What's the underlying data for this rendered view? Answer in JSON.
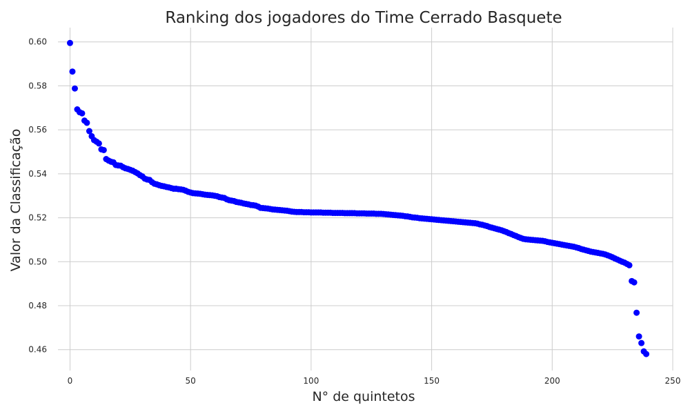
{
  "chart_data": {
    "type": "scatter",
    "title": "Ranking dos jogadores do Time Cerrado Basquete",
    "xlabel": "N° de quintetos",
    "ylabel": "Valor da Classificação",
    "xlim": [
      -5,
      250
    ],
    "ylim": [
      0.4505,
      0.6065
    ],
    "xticks": [
      0,
      50,
      100,
      150,
      200,
      250
    ],
    "xtick_labels": [
      "0",
      "50",
      "100",
      "150",
      "200",
      "250"
    ],
    "yticks": [
      0.46,
      0.48,
      0.5,
      0.52,
      0.54,
      0.56,
      0.58,
      0.6
    ],
    "ytick_labels": [
      "0.46",
      "0.48",
      "0.50",
      "0.52",
      "0.54",
      "0.56",
      "0.58",
      "0.60"
    ],
    "grid": true,
    "marker_color": "#0000ff",
    "series": [
      {
        "x": [
          0,
          1,
          2,
          3,
          4,
          5,
          6,
          7,
          8,
          9,
          10,
          11,
          12,
          13,
          14,
          15,
          16,
          17,
          18,
          19,
          20,
          21,
          22,
          23,
          24,
          25,
          26,
          27,
          28,
          29,
          30,
          31,
          32,
          33,
          34,
          35,
          36,
          37,
          38,
          39,
          40,
          41,
          42,
          43,
          44,
          45,
          46,
          47,
          48,
          49,
          50,
          51,
          52,
          53,
          54,
          55,
          56,
          57,
          58,
          59,
          60,
          61,
          62,
          63,
          64,
          65,
          66,
          67,
          68,
          69,
          70,
          71,
          72,
          73,
          74,
          75,
          76,
          77,
          78,
          79,
          80,
          81,
          82,
          83,
          84,
          85,
          86,
          87,
          88,
          89,
          90,
          91,
          92,
          93,
          94,
          95,
          96,
          97,
          98,
          99,
          100,
          101,
          102,
          103,
          104,
          105,
          106,
          107,
          108,
          109,
          110,
          111,
          112,
          113,
          114,
          115,
          116,
          117,
          118,
          119,
          120,
          121,
          122,
          123,
          124,
          125,
          126,
          127,
          128,
          129,
          130,
          131,
          132,
          133,
          134,
          135,
          136,
          137,
          138,
          139,
          140,
          141,
          142,
          143,
          144,
          145,
          146,
          147,
          148,
          149,
          150,
          151,
          152,
          153,
          154,
          155,
          156,
          157,
          158,
          159,
          160,
          161,
          162,
          163,
          164,
          165,
          166,
          167,
          168,
          169,
          170,
          171,
          172,
          173,
          174,
          175,
          176,
          177,
          178,
          179,
          180,
          181,
          182,
          183,
          184,
          185,
          186,
          187,
          188,
          189,
          190,
          191,
          192,
          193,
          194,
          195,
          196,
          197,
          198,
          199,
          200,
          201,
          202,
          203,
          204,
          205,
          206,
          207,
          208,
          209,
          210,
          211,
          212,
          213,
          214,
          215,
          216,
          217,
          218,
          219,
          220,
          221,
          222,
          223,
          224,
          225,
          226,
          227,
          228,
          229,
          230,
          231,
          232,
          233,
          234,
          235,
          236,
          237,
          238,
          239
        ],
        "y": [
          0.5995,
          0.5865,
          0.5788,
          0.5693,
          0.568,
          0.5675,
          0.5642,
          0.5632,
          0.5594,
          0.5571,
          0.5553,
          0.5546,
          0.5538,
          0.5511,
          0.5508,
          0.5467,
          0.546,
          0.5455,
          0.5452,
          0.544,
          0.5438,
          0.5437,
          0.543,
          0.5425,
          0.5422,
          0.5418,
          0.5414,
          0.5408,
          0.5402,
          0.5394,
          0.5388,
          0.5378,
          0.5374,
          0.5372,
          0.5362,
          0.5355,
          0.5352,
          0.5348,
          0.5345,
          0.5343,
          0.534,
          0.5338,
          0.5335,
          0.5332,
          0.5332,
          0.533,
          0.5329,
          0.5327,
          0.5323,
          0.5318,
          0.5315,
          0.5312,
          0.5311,
          0.531,
          0.5309,
          0.5307,
          0.5305,
          0.5304,
          0.5303,
          0.5302,
          0.53,
          0.5298,
          0.5294,
          0.5292,
          0.529,
          0.5284,
          0.528,
          0.5278,
          0.5276,
          0.5272,
          0.527,
          0.5268,
          0.5265,
          0.5263,
          0.5261,
          0.5258,
          0.5257,
          0.5255,
          0.5251,
          0.5245,
          0.5244,
          0.5243,
          0.5242,
          0.524,
          0.5238,
          0.5237,
          0.5236,
          0.5235,
          0.5234,
          0.5233,
          0.5232,
          0.523,
          0.5228,
          0.5227,
          0.5226,
          0.5226,
          0.5226,
          0.5225,
          0.5225,
          0.5225,
          0.5224,
          0.5224,
          0.5224,
          0.5224,
          0.5224,
          0.5223,
          0.5223,
          0.5223,
          0.5223,
          0.5222,
          0.5222,
          0.5222,
          0.5222,
          0.5222,
          0.5221,
          0.5221,
          0.5221,
          0.5221,
          0.5221,
          0.522,
          0.522,
          0.522,
          0.522,
          0.5219,
          0.5219,
          0.5219,
          0.5219,
          0.5218,
          0.5218,
          0.5218,
          0.5217,
          0.5216,
          0.5215,
          0.5214,
          0.5213,
          0.5212,
          0.5211,
          0.521,
          0.5209,
          0.5207,
          0.5206,
          0.5204,
          0.5202,
          0.5201,
          0.52,
          0.5198,
          0.5197,
          0.5196,
          0.5195,
          0.5194,
          0.5193,
          0.5192,
          0.5191,
          0.519,
          0.5189,
          0.5188,
          0.5187,
          0.5186,
          0.5185,
          0.5184,
          0.5183,
          0.5182,
          0.5181,
          0.518,
          0.5179,
          0.5178,
          0.5177,
          0.5176,
          0.5175,
          0.5173,
          0.517,
          0.5168,
          0.5165,
          0.5162,
          0.5158,
          0.5155,
          0.5152,
          0.5149,
          0.5146,
          0.5143,
          0.5139,
          0.5135,
          0.513,
          0.5126,
          0.5121,
          0.5117,
          0.5112,
          0.5108,
          0.5104,
          0.5102,
          0.5101,
          0.51,
          0.5099,
          0.5098,
          0.5097,
          0.5096,
          0.5095,
          0.5093,
          0.509,
          0.5088,
          0.5086,
          0.5084,
          0.5082,
          0.508,
          0.5078,
          0.5076,
          0.5074,
          0.5072,
          0.507,
          0.5068,
          0.5065,
          0.5062,
          0.5058,
          0.5055,
          0.5052,
          0.5049,
          0.5046,
          0.5044,
          0.5042,
          0.504,
          0.5038,
          0.5036,
          0.5033,
          0.5029,
          0.5025,
          0.502,
          0.5015,
          0.501,
          0.5005,
          0.5,
          0.4996,
          0.499,
          0.4984,
          0.4912,
          0.4906,
          0.4768,
          0.466,
          0.463,
          0.4592,
          0.458
        ]
      }
    ]
  }
}
